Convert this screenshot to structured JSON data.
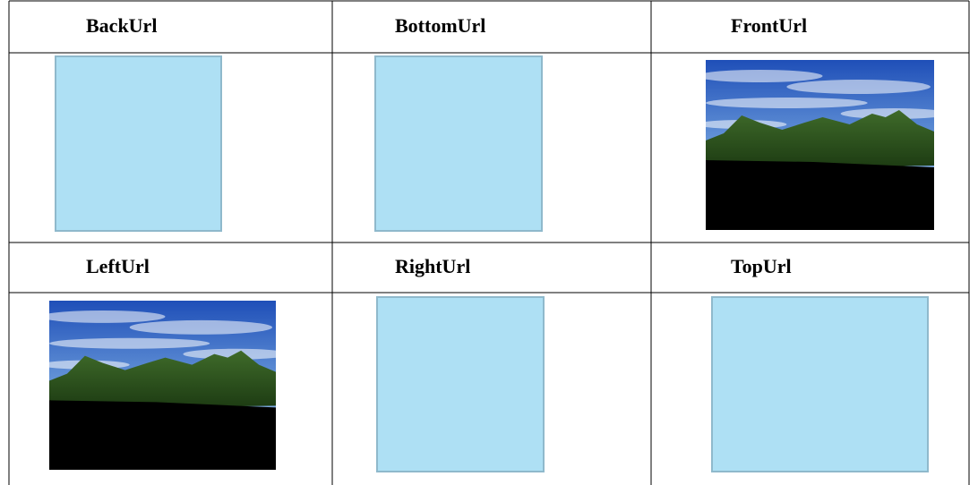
{
  "table": {
    "rows": [
      [
        "BackUrl",
        "BottomUrl",
        "FrontUrl"
      ],
      [
        "LeftUrl",
        "RightUrl",
        "TopUrl"
      ]
    ]
  }
}
